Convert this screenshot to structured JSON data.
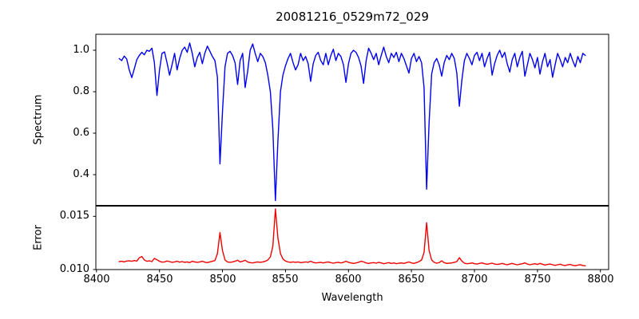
{
  "chart_data": {
    "type": "line",
    "title": "20081216_0529m72_029",
    "xlabel": "Wavelength",
    "xlim": [
      8399.5,
      8806.5
    ],
    "x_start": 8418,
    "x_step": 2,
    "x_ticks": {
      "values": [
        8400,
        8450,
        8500,
        8550,
        8600,
        8650,
        8700,
        8750,
        8800
      ],
      "labels": [
        "8400",
        "8450",
        "8500",
        "8550",
        "8600",
        "8650",
        "8700",
        "8750",
        "8800"
      ]
    },
    "subplots": [
      {
        "name": "spectrum",
        "ylabel": "Spectrum",
        "color": "#0000ee",
        "ylim": [
          0.25,
          1.077
        ],
        "y_ticks": {
          "values": [
            0.4,
            0.6,
            0.8,
            1.0
          ],
          "labels": [
            "0.4",
            "0.6",
            "0.8",
            "1.0"
          ]
        },
        "values": [
          0.96,
          0.95,
          0.972,
          0.958,
          0.905,
          0.868,
          0.91,
          0.955,
          0.975,
          0.99,
          0.978,
          1.0,
          0.995,
          1.01,
          0.94,
          0.782,
          0.905,
          0.985,
          0.992,
          0.94,
          0.88,
          0.93,
          0.985,
          0.905,
          0.96,
          1.0,
          1.015,
          0.99,
          1.035,
          0.985,
          0.92,
          0.965,
          0.99,
          0.935,
          0.985,
          1.02,
          0.995,
          0.97,
          0.95,
          0.87,
          0.452,
          0.7,
          0.92,
          0.985,
          0.995,
          0.975,
          0.94,
          0.835,
          0.95,
          0.985,
          0.82,
          0.9,
          1.0,
          1.03,
          0.985,
          0.945,
          0.985,
          0.97,
          0.94,
          0.88,
          0.8,
          0.62,
          0.275,
          0.56,
          0.8,
          0.88,
          0.925,
          0.96,
          0.985,
          0.94,
          0.905,
          0.93,
          0.985,
          0.95,
          0.97,
          0.935,
          0.85,
          0.935,
          0.975,
          0.99,
          0.95,
          0.93,
          0.985,
          0.93,
          0.975,
          1.005,
          0.95,
          0.985,
          0.97,
          0.93,
          0.845,
          0.935,
          0.985,
          1.0,
          0.99,
          0.965,
          0.925,
          0.84,
          0.95,
          1.01,
          0.985,
          0.955,
          0.985,
          0.93,
          0.975,
          1.015,
          0.97,
          0.94,
          0.985,
          0.965,
          0.99,
          0.945,
          0.985,
          0.96,
          0.925,
          0.89,
          0.96,
          0.985,
          0.945,
          0.97,
          0.94,
          0.82,
          0.33,
          0.65,
          0.885,
          0.94,
          0.96,
          0.93,
          0.875,
          0.94,
          0.975,
          0.955,
          0.985,
          0.96,
          0.89,
          0.73,
          0.855,
          0.95,
          0.985,
          0.96,
          0.93,
          0.975,
          0.99,
          0.95,
          0.985,
          0.92,
          0.96,
          0.99,
          0.88,
          0.935,
          0.975,
          1.0,
          0.965,
          0.99,
          0.935,
          0.895,
          0.955,
          0.985,
          0.92,
          0.965,
          0.995,
          0.875,
          0.93,
          0.985,
          0.955,
          0.915,
          0.965,
          0.885,
          0.945,
          0.985,
          0.92,
          0.955,
          0.87,
          0.93,
          0.985,
          0.955,
          0.92,
          0.965,
          0.94,
          0.985,
          0.95,
          0.92,
          0.97,
          0.94,
          0.985,
          0.975
        ]
      },
      {
        "name": "error",
        "ylabel": "Error",
        "color": "#ee0000",
        "ylim": [
          0.01,
          0.016
        ],
        "y_ticks": {
          "values": [
            0.01,
            0.015
          ],
          "labels": [
            "0.010",
            "0.015"
          ]
        },
        "values": [
          0.01075,
          0.01078,
          0.01072,
          0.0108,
          0.01082,
          0.01078,
          0.01085,
          0.0108,
          0.0111,
          0.01123,
          0.0109,
          0.01078,
          0.01082,
          0.01075,
          0.01105,
          0.01092,
          0.01078,
          0.0107,
          0.01072,
          0.0108,
          0.01075,
          0.01068,
          0.01072,
          0.01078,
          0.0107,
          0.01075,
          0.01068,
          0.01072,
          0.01065,
          0.01078,
          0.01072,
          0.01068,
          0.01072,
          0.01078,
          0.0107,
          0.01065,
          0.01072,
          0.01078,
          0.01085,
          0.0115,
          0.01348,
          0.0118,
          0.0109,
          0.01072,
          0.01068,
          0.01072,
          0.01078,
          0.01088,
          0.01072,
          0.01078,
          0.01088,
          0.01072,
          0.01065,
          0.01062,
          0.01068,
          0.01072,
          0.01068,
          0.01072,
          0.01078,
          0.0109,
          0.0112,
          0.0122,
          0.0157,
          0.013,
          0.0115,
          0.011,
          0.0108,
          0.01072,
          0.01068,
          0.01072,
          0.01068,
          0.01072,
          0.01065,
          0.01068,
          0.01072,
          0.01068,
          0.01078,
          0.01068,
          0.01062,
          0.01065,
          0.01068,
          0.01062,
          0.01068,
          0.01072,
          0.01065,
          0.0106,
          0.01065,
          0.01068,
          0.01062,
          0.01068,
          0.01078,
          0.01068,
          0.01062,
          0.01058,
          0.01062,
          0.01068,
          0.01078,
          0.01072,
          0.01062,
          0.01058,
          0.01062,
          0.01065,
          0.0106,
          0.01068,
          0.01062,
          0.01055,
          0.0106,
          0.01065,
          0.01058,
          0.01062,
          0.01055,
          0.0106,
          0.01062,
          0.01058,
          0.01065,
          0.01072,
          0.01062,
          0.01058,
          0.01065,
          0.01075,
          0.0109,
          0.0116,
          0.0144,
          0.0118,
          0.0109,
          0.01068,
          0.0106,
          0.01065,
          0.01082,
          0.01065,
          0.01058,
          0.0106,
          0.01062,
          0.01068,
          0.01075,
          0.01112,
          0.0108,
          0.0106,
          0.01055,
          0.01058,
          0.01062,
          0.01055,
          0.01052,
          0.01058,
          0.01062,
          0.01055,
          0.0105,
          0.01055,
          0.0106,
          0.01052,
          0.01048,
          0.01052,
          0.01058,
          0.0105,
          0.01045,
          0.01052,
          0.01058,
          0.0105,
          0.01045,
          0.0105,
          0.01055,
          0.01062,
          0.01052,
          0.01045,
          0.0105,
          0.01055,
          0.01048,
          0.01058,
          0.0105,
          0.01042,
          0.01048,
          0.01052,
          0.01045,
          0.0104,
          0.01045,
          0.0105,
          0.01042,
          0.01038,
          0.01044,
          0.01048,
          0.0104,
          0.01036,
          0.01042,
          0.01046,
          0.01038,
          0.01035
        ]
      }
    ]
  }
}
